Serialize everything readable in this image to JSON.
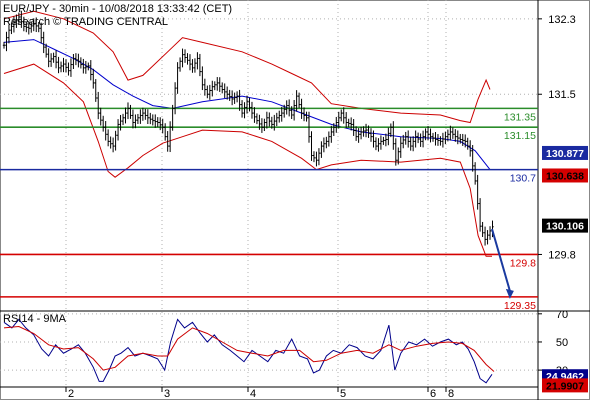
{
  "header": {
    "title": "EUR/JPY - 30min - 10/08/2018 13:33:42 (CET)",
    "subtitle": "Research © TRADING CENTRAL"
  },
  "colors": {
    "resistance": "#2a8c2a",
    "pivot": "#1a2aa0",
    "support": "#d40000",
    "price": "#000000",
    "ma_fast": "#0000cc",
    "bollinger": "#cc0000",
    "rsi_line": "#00008b",
    "rsi_signal": "#cc0000",
    "arrow": "#1a3aa0"
  },
  "chart_data": [
    {
      "type": "bar",
      "subtype": "ohlc-with-indicators",
      "title": "EUR/JPY - 30min - 10/08/2018 13:33:42 (CET)",
      "ylim": [
        129.2,
        132.5
      ],
      "yticks": [
        132.3,
        131.5,
        129.8
      ],
      "xticks": [
        "2",
        "3",
        "4",
        "5",
        "6",
        "8"
      ],
      "levels": [
        {
          "name": "resistance-1",
          "value": 131.35,
          "label": "131.35",
          "color": "#2a8c2a"
        },
        {
          "name": "resistance-2",
          "value": 131.15,
          "label": "131.15",
          "color": "#2a8c2a"
        },
        {
          "name": "pivot",
          "value": 130.7,
          "label": "130.7",
          "color": "#1a2aa0"
        },
        {
          "name": "support-1",
          "value": 129.8,
          "label": "129.8",
          "color": "#d40000"
        },
        {
          "name": "support-2",
          "value": 129.35,
          "label": "129.35",
          "color": "#d40000"
        }
      ],
      "price_boxes": [
        {
          "name": "box-130877",
          "value": 130.877,
          "label": "130.877",
          "bg": "#1a2aa0",
          "fg": "#ffffff"
        },
        {
          "name": "box-130638",
          "value": 130.638,
          "label": "130.638",
          "bg": "#d40000",
          "fg": "#000000"
        },
        {
          "name": "box-130106",
          "value": 130.106,
          "label": "130.106",
          "bg": "#000000",
          "fg": "#ffffff"
        }
      ],
      "price_path": [
        [
          0,
          132.02
        ],
        [
          5,
          132.18
        ],
        [
          10,
          132.26
        ],
        [
          15,
          132.32
        ],
        [
          20,
          132.22
        ],
        [
          25,
          132.2
        ],
        [
          30,
          132.25
        ],
        [
          35,
          132.2
        ],
        [
          40,
          132.0
        ],
        [
          45,
          131.85
        ],
        [
          50,
          131.9
        ],
        [
          55,
          131.78
        ],
        [
          60,
          131.82
        ],
        [
          65,
          131.75
        ],
        [
          70,
          131.88
        ],
        [
          75,
          131.85
        ],
        [
          80,
          131.78
        ],
        [
          85,
          131.8
        ],
        [
          90,
          131.62
        ],
        [
          95,
          131.3
        ],
        [
          100,
          131.15
        ],
        [
          105,
          131.0
        ],
        [
          110,
          130.95
        ],
        [
          115,
          131.18
        ],
        [
          120,
          131.25
        ],
        [
          125,
          131.35
        ],
        [
          130,
          131.2
        ],
        [
          135,
          131.25
        ],
        [
          140,
          131.3
        ],
        [
          145,
          131.25
        ],
        [
          150,
          131.22
        ],
        [
          155,
          131.2
        ],
        [
          160,
          131.15
        ],
        [
          165,
          130.95
        ],
        [
          170,
          131.35
        ],
        [
          175,
          131.78
        ],
        [
          180,
          131.92
        ],
        [
          185,
          131.86
        ],
        [
          190,
          131.78
        ],
        [
          195,
          131.88
        ],
        [
          200,
          131.6
        ],
        [
          205,
          131.5
        ],
        [
          210,
          131.58
        ],
        [
          215,
          131.62
        ],
        [
          220,
          131.55
        ],
        [
          225,
          131.5
        ],
        [
          230,
          131.45
        ],
        [
          235,
          131.48
        ],
        [
          240,
          131.3
        ],
        [
          245,
          131.42
        ],
        [
          250,
          131.3
        ],
        [
          255,
          131.22
        ],
        [
          260,
          131.15
        ],
        [
          265,
          131.25
        ],
        [
          270,
          131.18
        ],
        [
          275,
          131.25
        ],
        [
          280,
          131.3
        ],
        [
          285,
          131.38
        ],
        [
          290,
          131.28
        ],
        [
          295,
          131.48
        ],
        [
          300,
          131.3
        ],
        [
          305,
          131.25
        ],
        [
          310,
          130.85
        ],
        [
          315,
          130.8
        ],
        [
          320,
          130.95
        ],
        [
          325,
          131.0
        ],
        [
          330,
          131.1
        ],
        [
          335,
          131.2
        ],
        [
          340,
          131.3
        ],
        [
          345,
          131.2
        ],
        [
          350,
          131.18
        ],
        [
          355,
          131.05
        ],
        [
          360,
          131.1
        ],
        [
          365,
          131.12
        ],
        [
          370,
          131.05
        ],
        [
          375,
          130.95
        ],
        [
          380,
          131.0
        ],
        [
          385,
          131.02
        ],
        [
          390,
          131.15
        ],
        [
          395,
          130.8
        ],
        [
          400,
          130.98
        ],
        [
          405,
          131.05
        ],
        [
          410,
          130.95
        ],
        [
          415,
          131.05
        ],
        [
          420,
          131.0
        ],
        [
          425,
          131.1
        ],
        [
          430,
          131.05
        ],
        [
          435,
          131.02
        ],
        [
          440,
          131.0
        ],
        [
          445,
          131.05
        ],
        [
          450,
          131.1
        ],
        [
          455,
          131.05
        ],
        [
          460,
          131.02
        ],
        [
          465,
          131.0
        ],
        [
          470,
          130.9
        ],
        [
          475,
          130.58
        ],
        [
          480,
          130.1
        ],
        [
          485,
          129.96
        ],
        [
          490,
          130.05
        ],
        [
          494,
          130.12
        ]
      ],
      "ma_path": [
        [
          0,
          132.05
        ],
        [
          30,
          132.08
        ],
        [
          50,
          131.98
        ],
        [
          70,
          131.88
        ],
        [
          90,
          131.76
        ],
        [
          110,
          131.6
        ],
        [
          130,
          131.48
        ],
        [
          150,
          131.38
        ],
        [
          170,
          131.35
        ],
        [
          200,
          131.42
        ],
        [
          240,
          131.48
        ],
        [
          270,
          131.42
        ],
        [
          300,
          131.3
        ],
        [
          330,
          131.18
        ],
        [
          360,
          131.1
        ],
        [
          400,
          131.05
        ],
        [
          440,
          131.03
        ],
        [
          460,
          131.0
        ],
        [
          475,
          130.9
        ],
        [
          490,
          130.7
        ]
      ],
      "bb_upper_path": [
        [
          0,
          132.3
        ],
        [
          30,
          132.38
        ],
        [
          60,
          132.3
        ],
        [
          90,
          132.15
        ],
        [
          110,
          131.95
        ],
        [
          125,
          131.65
        ],
        [
          140,
          131.7
        ],
        [
          165,
          131.95
        ],
        [
          180,
          132.1
        ],
        [
          200,
          132.05
        ],
        [
          240,
          131.95
        ],
        [
          270,
          131.82
        ],
        [
          290,
          131.72
        ],
        [
          310,
          131.62
        ],
        [
          330,
          131.4
        ],
        [
          360,
          131.35
        ],
        [
          400,
          131.3
        ],
        [
          440,
          131.28
        ],
        [
          460,
          131.22
        ],
        [
          470,
          131.2
        ],
        [
          478,
          131.45
        ],
        [
          486,
          131.65
        ],
        [
          490,
          131.55
        ]
      ],
      "bb_lower_path": [
        [
          0,
          131.72
        ],
        [
          30,
          131.82
        ],
        [
          60,
          131.62
        ],
        [
          80,
          131.42
        ],
        [
          95,
          131.0
        ],
        [
          105,
          130.68
        ],
        [
          112,
          130.62
        ],
        [
          125,
          130.72
        ],
        [
          140,
          130.85
        ],
        [
          160,
          130.98
        ],
        [
          180,
          131.05
        ],
        [
          200,
          131.12
        ],
        [
          240,
          131.1
        ],
        [
          270,
          131.0
        ],
        [
          300,
          130.82
        ],
        [
          315,
          130.7
        ],
        [
          330,
          130.75
        ],
        [
          360,
          130.8
        ],
        [
          400,
          130.78
        ],
        [
          440,
          130.82
        ],
        [
          460,
          130.78
        ],
        [
          470,
          130.5
        ],
        [
          478,
          130.0
        ],
        [
          486,
          129.78
        ],
        [
          492,
          129.78
        ]
      ],
      "forecast_arrow": {
        "from": [
          492,
          130.07
        ],
        "to": [
          510,
          129.35
        ]
      }
    },
    {
      "type": "line",
      "title": "RSI14 - 9MA",
      "ylim": [
        18,
        72
      ],
      "yticks": [
        70,
        50,
        30
      ],
      "series": [
        {
          "name": "RSI14",
          "color": "#00008b",
          "values": [
            [
              0,
              64
            ],
            [
              8,
              60
            ],
            [
              15,
              66
            ],
            [
              22,
              60
            ],
            [
              30,
              55
            ],
            [
              38,
              45
            ],
            [
              45,
              40
            ],
            [
              52,
              48
            ],
            [
              60,
              42
            ],
            [
              68,
              45
            ],
            [
              75,
              48
            ],
            [
              82,
              42
            ],
            [
              90,
              32
            ],
            [
              96,
              22
            ],
            [
              100,
              22
            ],
            [
              106,
              30
            ],
            [
              112,
              40
            ],
            [
              118,
              42
            ],
            [
              125,
              46
            ],
            [
              132,
              40
            ],
            [
              140,
              42
            ],
            [
              148,
              40
            ],
            [
              155,
              38
            ],
            [
              162,
              30
            ],
            [
              168,
              50
            ],
            [
              175,
              66
            ],
            [
              182,
              60
            ],
            [
              190,
              64
            ],
            [
              198,
              56
            ],
            [
              205,
              50
            ],
            [
              212,
              55
            ],
            [
              220,
              48
            ],
            [
              228,
              44
            ],
            [
              235,
              40
            ],
            [
              242,
              36
            ],
            [
              250,
              44
            ],
            [
              258,
              40
            ],
            [
              266,
              36
            ],
            [
              274,
              44
            ],
            [
              282,
              42
            ],
            [
              290,
              52
            ],
            [
              298,
              40
            ],
            [
              306,
              38
            ],
            [
              312,
              28
            ],
            [
              318,
              30
            ],
            [
              325,
              40
            ],
            [
              332,
              44
            ],
            [
              340,
              42
            ],
            [
              348,
              48
            ],
            [
              356,
              46
            ],
            [
              364,
              40
            ],
            [
              372,
              38
            ],
            [
              380,
              44
            ],
            [
              388,
              62
            ],
            [
              394,
              30
            ],
            [
              400,
              42
            ],
            [
              408,
              50
            ],
            [
              416,
              48
            ],
            [
              424,
              52
            ],
            [
              432,
              47
            ],
            [
              440,
              50
            ],
            [
              448,
              52
            ],
            [
              456,
              48
            ],
            [
              462,
              50
            ],
            [
              468,
              45
            ],
            [
              474,
              36
            ],
            [
              480,
              24
            ],
            [
              486,
              21
            ],
            [
              492,
              27
            ]
          ]
        },
        {
          "name": "9MA",
          "color": "#cc0000",
          "values": [
            [
              0,
              60
            ],
            [
              15,
              61
            ],
            [
              30,
              56
            ],
            [
              45,
              48
            ],
            [
              60,
              45
            ],
            [
              75,
              46
            ],
            [
              90,
              38
            ],
            [
              100,
              30
            ],
            [
              112,
              32
            ],
            [
              125,
              40
            ],
            [
              140,
              42
            ],
            [
              155,
              40
            ],
            [
              165,
              40
            ],
            [
              175,
              52
            ],
            [
              190,
              60
            ],
            [
              205,
              56
            ],
            [
              220,
              50
            ],
            [
              235,
              44
            ],
            [
              250,
              42
            ],
            [
              266,
              40
            ],
            [
              282,
              44
            ],
            [
              298,
              44
            ],
            [
              312,
              36
            ],
            [
              325,
              37
            ],
            [
              340,
              42
            ],
            [
              356,
              44
            ],
            [
              372,
              42
            ],
            [
              388,
              48
            ],
            [
              400,
              44
            ],
            [
              416,
              47
            ],
            [
              432,
              49
            ],
            [
              448,
              50
            ],
            [
              462,
              49
            ],
            [
              474,
              44
            ],
            [
              486,
              34
            ],
            [
              494,
              29
            ]
          ]
        }
      ],
      "boxes": [
        {
          "name": "rsi-box-24",
          "value": 24.9462,
          "label": "24.9462",
          "bg": "#00008b",
          "fg": "#ffffff"
        },
        {
          "name": "rsi-box-21",
          "value": 21.9907,
          "label": "21.9907",
          "bg": "#d40000",
          "fg": "#000000"
        }
      ],
      "label": "RSI14 - 9MA"
    }
  ]
}
